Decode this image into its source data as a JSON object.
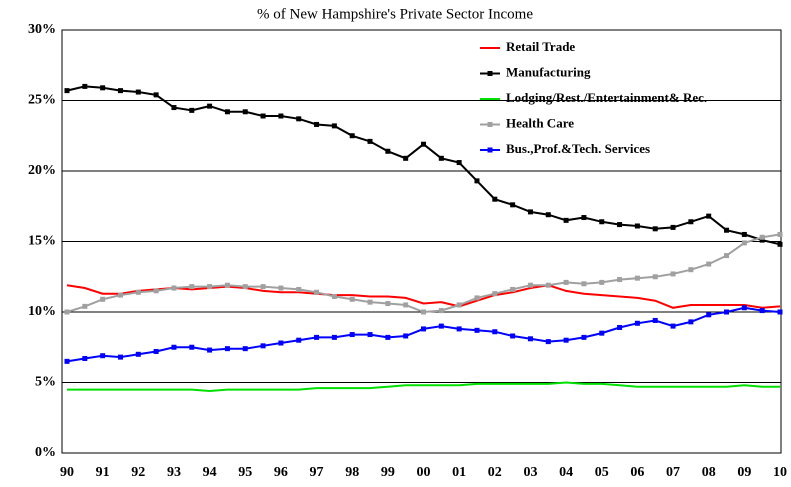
{
  "chart_data": {
    "type": "line",
    "title": "% of New Hampshire's Private Sector Income",
    "categories": [
      "90",
      null,
      "91",
      null,
      "92",
      null,
      "93",
      null,
      "94",
      null,
      "95",
      null,
      "96",
      null,
      "97",
      null,
      "98",
      null,
      "99",
      null,
      "00",
      null,
      "01",
      null,
      "02",
      null,
      "03",
      null,
      "04",
      null,
      "05",
      null,
      "06",
      null,
      "07",
      null,
      "08",
      null,
      "09",
      null,
      "10"
    ],
    "ylim": [
      0,
      30
    ],
    "yticks": [
      {
        "value": 0,
        "label": "0%"
      },
      {
        "value": 5,
        "label": "5%"
      },
      {
        "value": 10,
        "label": "10%"
      },
      {
        "value": 15,
        "label": "15%"
      },
      {
        "value": 20,
        "label": "20%"
      },
      {
        "value": 25,
        "label": "25%"
      },
      {
        "value": 30,
        "label": "30%"
      }
    ],
    "grid": true,
    "legend": "top-right",
    "series": [
      {
        "name": "Retail Trade",
        "color": "#ff0000",
        "marker": "none",
        "values": [
          11.9,
          11.7,
          11.3,
          11.3,
          11.5,
          11.6,
          11.7,
          11.6,
          11.7,
          11.8,
          11.7,
          11.5,
          11.4,
          11.4,
          11.3,
          11.2,
          11.2,
          11.1,
          11.1,
          11.0,
          10.6,
          10.7,
          10.4,
          10.8,
          11.2,
          11.4,
          11.7,
          11.9,
          11.5,
          11.3,
          11.2,
          11.1,
          11.0,
          10.8,
          10.3,
          10.5,
          10.5,
          10.5,
          10.5,
          10.3,
          10.4
        ]
      },
      {
        "name": "Manufacturing",
        "color": "#000000",
        "marker": "square",
        "values": [
          25.7,
          26.0,
          25.9,
          25.7,
          25.6,
          25.4,
          24.5,
          24.3,
          24.6,
          24.2,
          24.2,
          23.9,
          23.9,
          23.7,
          23.3,
          23.2,
          22.5,
          22.1,
          21.4,
          20.9,
          21.9,
          20.9,
          20.6,
          19.3,
          18.0,
          17.6,
          17.1,
          16.9,
          16.5,
          16.7,
          16.4,
          16.2,
          16.1,
          15.9,
          16.0,
          16.4,
          16.8,
          15.8,
          15.5,
          15.1,
          14.8
        ]
      },
      {
        "name": "Lodging/Rest./Entertainment& Rec.",
        "color": "#00e000",
        "marker": "none",
        "values": [
          4.5,
          4.5,
          4.5,
          4.5,
          4.5,
          4.5,
          4.5,
          4.5,
          4.4,
          4.5,
          4.5,
          4.5,
          4.5,
          4.5,
          4.6,
          4.6,
          4.6,
          4.6,
          4.7,
          4.8,
          4.8,
          4.8,
          4.8,
          4.9,
          4.9,
          4.9,
          4.9,
          4.9,
          5.0,
          4.9,
          4.9,
          4.8,
          4.7,
          4.7,
          4.7,
          4.7,
          4.7,
          4.7,
          4.8,
          4.7,
          4.7
        ]
      },
      {
        "name": "Health Care",
        "color": "#a0a0a0",
        "marker": "square",
        "values": [
          10.0,
          10.4,
          10.9,
          11.2,
          11.4,
          11.5,
          11.7,
          11.8,
          11.8,
          11.9,
          11.8,
          11.8,
          11.7,
          11.6,
          11.4,
          11.1,
          10.9,
          10.7,
          10.6,
          10.5,
          10.0,
          10.1,
          10.5,
          11.0,
          11.3,
          11.6,
          11.9,
          11.9,
          12.1,
          12.0,
          12.1,
          12.3,
          12.4,
          12.5,
          12.7,
          13.0,
          13.4,
          14.0,
          14.9,
          15.3,
          15.5
        ]
      },
      {
        "name": "Bus.,Prof.&Tech. Services",
        "color": "#0000ff",
        "marker": "square",
        "values": [
          6.5,
          6.7,
          6.9,
          6.8,
          7.0,
          7.2,
          7.5,
          7.5,
          7.3,
          7.4,
          7.4,
          7.6,
          7.8,
          8.0,
          8.2,
          8.2,
          8.4,
          8.4,
          8.2,
          8.3,
          8.8,
          9.0,
          8.8,
          8.7,
          8.6,
          8.3,
          8.1,
          7.9,
          8.0,
          8.2,
          8.5,
          8.9,
          9.2,
          9.4,
          9.0,
          9.3,
          9.8,
          10.0,
          10.3,
          10.1,
          10.0
        ]
      }
    ]
  }
}
